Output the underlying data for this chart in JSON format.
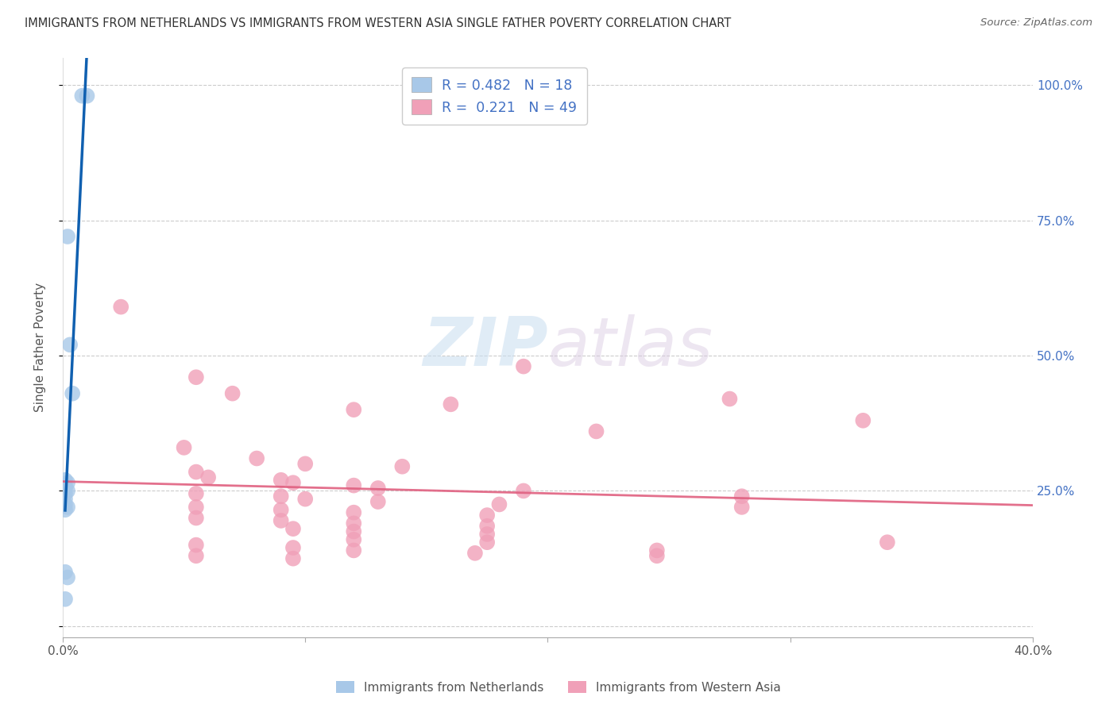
{
  "title": "IMMIGRANTS FROM NETHERLANDS VS IMMIGRANTS FROM WESTERN ASIA SINGLE FATHER POVERTY CORRELATION CHART",
  "source": "Source: ZipAtlas.com",
  "ylabel": "Single Father Poverty",
  "watermark_zip": "ZIP",
  "watermark_atlas": "atlas",
  "xlim": [
    0.0,
    0.4
  ],
  "ylim": [
    -0.02,
    1.05
  ],
  "nl_color": "#a8c8e8",
  "wa_color": "#f0a0b8",
  "nl_line_color": "#1060b0",
  "wa_line_color": "#e06080",
  "nl_line_dash_color": "#90b8d8",
  "legend_r1": "0.482",
  "legend_n1": "18",
  "legend_r2": "0.221",
  "legend_n2": "49",
  "nl_scatter": [
    [
      0.008,
      0.98
    ],
    [
      0.01,
      0.98
    ],
    [
      0.002,
      0.72
    ],
    [
      0.003,
      0.52
    ],
    [
      0.004,
      0.43
    ],
    [
      0.001,
      0.27
    ],
    [
      0.002,
      0.265
    ],
    [
      0.001,
      0.26
    ],
    [
      0.001,
      0.255
    ],
    [
      0.002,
      0.25
    ],
    [
      0.001,
      0.245
    ],
    [
      0.001,
      0.235
    ],
    [
      0.001,
      0.225
    ],
    [
      0.002,
      0.22
    ],
    [
      0.001,
      0.215
    ],
    [
      0.001,
      0.1
    ],
    [
      0.002,
      0.09
    ],
    [
      0.001,
      0.05
    ]
  ],
  "wa_scatter": [
    [
      0.024,
      0.59
    ],
    [
      0.055,
      0.46
    ],
    [
      0.07,
      0.43
    ],
    [
      0.12,
      0.4
    ],
    [
      0.16,
      0.41
    ],
    [
      0.22,
      0.36
    ],
    [
      0.05,
      0.33
    ],
    [
      0.08,
      0.31
    ],
    [
      0.1,
      0.3
    ],
    [
      0.14,
      0.295
    ],
    [
      0.055,
      0.285
    ],
    [
      0.06,
      0.275
    ],
    [
      0.09,
      0.27
    ],
    [
      0.095,
      0.265
    ],
    [
      0.12,
      0.26
    ],
    [
      0.13,
      0.255
    ],
    [
      0.19,
      0.25
    ],
    [
      0.055,
      0.245
    ],
    [
      0.09,
      0.24
    ],
    [
      0.1,
      0.235
    ],
    [
      0.13,
      0.23
    ],
    [
      0.18,
      0.225
    ],
    [
      0.055,
      0.22
    ],
    [
      0.09,
      0.215
    ],
    [
      0.12,
      0.21
    ],
    [
      0.175,
      0.205
    ],
    [
      0.055,
      0.2
    ],
    [
      0.09,
      0.195
    ],
    [
      0.12,
      0.19
    ],
    [
      0.175,
      0.185
    ],
    [
      0.095,
      0.18
    ],
    [
      0.12,
      0.175
    ],
    [
      0.175,
      0.17
    ],
    [
      0.12,
      0.16
    ],
    [
      0.175,
      0.155
    ],
    [
      0.055,
      0.15
    ],
    [
      0.095,
      0.145
    ],
    [
      0.12,
      0.14
    ],
    [
      0.17,
      0.135
    ],
    [
      0.055,
      0.13
    ],
    [
      0.095,
      0.125
    ],
    [
      0.19,
      0.48
    ],
    [
      0.275,
      0.42
    ],
    [
      0.33,
      0.38
    ],
    [
      0.28,
      0.24
    ],
    [
      0.28,
      0.22
    ],
    [
      0.34,
      0.155
    ],
    [
      0.245,
      0.14
    ],
    [
      0.245,
      0.13
    ]
  ]
}
